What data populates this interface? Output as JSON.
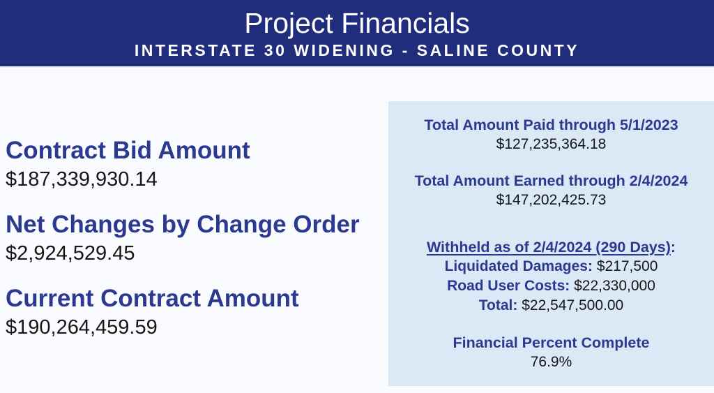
{
  "header": {
    "title": "Project Financials",
    "subtitle": "INTERSTATE 30 WIDENING - SALINE COUNTY"
  },
  "contract_summary": {
    "items": [
      {
        "label": "Contract Bid Amount",
        "value": "$187,339,930.14"
      },
      {
        "label": "Net Changes by Change Order",
        "value": "$2,924,529.45"
      },
      {
        "label": "Current Contract Amount",
        "value": "$190,264,459.59"
      }
    ]
  },
  "financials_panel": {
    "paid": {
      "label": "Total Amount Paid through 5/1/2023",
      "value": "$127,235,364.18"
    },
    "earned": {
      "label": "Total Amount Earned through 2/4/2024",
      "value": "$147,202,425.73"
    },
    "withheld": {
      "heading": "Withheld as of 2/4/2024 (290 Days)",
      "heading_suffix": ":",
      "lines": [
        {
          "label": "Liquidated Damages:",
          "value": "$217,500"
        },
        {
          "label": "Road User Costs:",
          "value": "$22,330,000"
        },
        {
          "label": "Total:",
          "value": "$22,547,500.00"
        }
      ]
    },
    "percent_complete": {
      "label": "Financial Percent Complete",
      "value": "76.9%"
    }
  },
  "colors": {
    "header_bg": "#202d7c",
    "header_text": "#ffffff",
    "navy_text": "#2b3990",
    "panel_bg": "#dbe8f6",
    "value_text": "#161616",
    "page_bg": "#fafbfe"
  }
}
